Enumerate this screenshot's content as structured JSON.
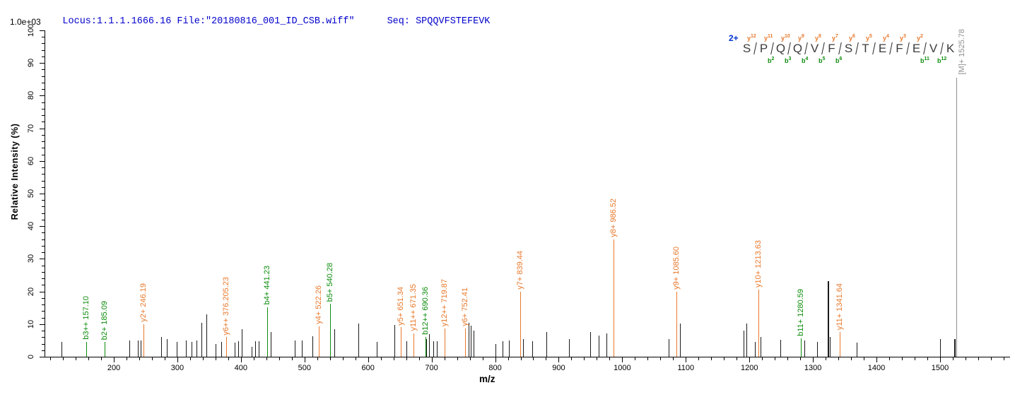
{
  "header": {
    "locus_file": "Locus:1.1.1.1666.16 File:\"20180816_001_ID_CSB.wiff\"",
    "seq": "Seq: SPQQVFSTEFEVK",
    "scale_label": "1.0e+03"
  },
  "colors": {
    "background": "#ffffff",
    "axis": "#000000",
    "peak_default": "#1a1a1a",
    "y_ion": "#e8792c",
    "b_ion": "#0d8c0d",
    "precursor": "#8f8f8f",
    "header_text": "#0000cc",
    "charge_label": "#0033cc",
    "sequence_letters": "#3c3c3c"
  },
  "sequence_panel": {
    "charge_label": "2+",
    "peptide": "SPQQVFSTEFEVK",
    "residues": [
      "S",
      "P",
      "Q",
      "Q",
      "V",
      "F",
      "S",
      "T",
      "E",
      "F",
      "E",
      "V",
      "K"
    ],
    "gaps": [
      {
        "y": "y12",
        "b": ""
      },
      {
        "y": "y11",
        "b": "b2"
      },
      {
        "y": "y10",
        "b": "b3"
      },
      {
        "y": "y9",
        "b": "b4"
      },
      {
        "y": "y8",
        "b": "b5"
      },
      {
        "y": "y7",
        "b": "b6"
      },
      {
        "y": "y6",
        "b": ""
      },
      {
        "y": "y5",
        "b": ""
      },
      {
        "y": "y4",
        "b": ""
      },
      {
        "y": "y3",
        "b": ""
      },
      {
        "y": "y2",
        "b": "b11"
      },
      {
        "y": "",
        "b": "b12"
      }
    ]
  },
  "chart_data": {
    "type": "bar",
    "title": "MS/MS fragmentation spectrum",
    "xlabel": "m/z",
    "ylabel": "Relative  Intensity (%)",
    "intensity_scale_note": "1.0e+03",
    "x_range": [
      91,
      1610
    ],
    "y_range": [
      0,
      100
    ],
    "x_major_from": 200,
    "x_major_to": 1500,
    "x_major_step": 100,
    "x_minor_step": 20,
    "y_major_step": 10,
    "y_minor_step": 2,
    "grid": false,
    "labeled_peaks": [
      {
        "ion": "b3++",
        "series": "b",
        "label": "b3++ 157.10",
        "mz": 157.1,
        "intensity_pct": 4.5
      },
      {
        "ion": "b2+",
        "series": "b",
        "label": "b2+ 185.09",
        "mz": 185.09,
        "intensity_pct": 4.5
      },
      {
        "ion": "y2+",
        "series": "y",
        "label": "y2+ 246.19",
        "mz": 246.19,
        "intensity_pct": 10
      },
      {
        "ion": "y6++",
        "series": "y",
        "label": "y6++ 376.205.23",
        "mz": 376.2,
        "intensity_pct": 6
      },
      {
        "ion": "b4+",
        "series": "b",
        "label": "b4+ 441.23",
        "mz": 441.23,
        "intensity_pct": 15.2
      },
      {
        "ion": "y4+",
        "series": "y",
        "label": "y4+ 522.26",
        "mz": 522.26,
        "intensity_pct": 9.3
      },
      {
        "ion": "b5+",
        "series": "b",
        "label": "b5+ 540.28",
        "mz": 540.28,
        "intensity_pct": 16.2
      },
      {
        "ion": "y5+",
        "series": "y",
        "label": "y5+ 651.34",
        "mz": 651.34,
        "intensity_pct": 9
      },
      {
        "ion": "y11++",
        "series": "y",
        "label": "y11++ 671.35",
        "mz": 671.35,
        "intensity_pct": 7.2
      },
      {
        "ion": "b12++",
        "series": "b",
        "label": "b12++ 690.36",
        "mz": 690.36,
        "intensity_pct": 6
      },
      {
        "ion": "y12++",
        "series": "y",
        "label": "y12++ 719.87",
        "mz": 719.87,
        "intensity_pct": 8.7
      },
      {
        "ion": "y6+",
        "series": "y",
        "label": "y6+ 752.41",
        "mz": 752.41,
        "intensity_pct": 8.7
      },
      {
        "ion": "y7+",
        "series": "y",
        "label": "y7+ 839.44",
        "mz": 839.44,
        "intensity_pct": 20
      },
      {
        "ion": "y8+",
        "series": "y",
        "label": "y8+ 986.52",
        "mz": 986.52,
        "intensity_pct": 36
      },
      {
        "ion": "y9+",
        "series": "y",
        "label": "y9+ 1085.60",
        "mz": 1085.6,
        "intensity_pct": 20
      },
      {
        "ion": "y10+",
        "series": "y",
        "label": "y10+ 1213.63",
        "mz": 1213.63,
        "intensity_pct": 20.5
      },
      {
        "ion": "b11+",
        "series": "b",
        "label": "b11+ 1280.59",
        "mz": 1280.59,
        "intensity_pct": 5.6
      },
      {
        "ion": "y11+",
        "series": "y",
        "label": "y11+ 1341.64",
        "mz": 1341.64,
        "intensity_pct": 7.6
      }
    ],
    "precursor": {
      "ion": "[M]+",
      "label": "[M]+ 1525.78",
      "mz": 1525.78,
      "intensity_pct": 85.5
    },
    "unlabeled_peaks": [
      [
        118,
        4.5
      ],
      [
        224,
        5
      ],
      [
        238,
        5
      ],
      [
        242,
        5
      ],
      [
        274,
        6
      ],
      [
        283,
        5.5
      ],
      [
        299,
        4.5
      ],
      [
        313,
        5
      ],
      [
        322,
        4.5
      ],
      [
        330,
        5
      ],
      [
        338,
        10.4
      ],
      [
        346,
        13
      ],
      [
        360,
        4
      ],
      [
        369,
        4.5
      ],
      [
        390,
        4.3
      ],
      [
        396,
        4.7
      ],
      [
        401,
        8.5
      ],
      [
        417,
        3
      ],
      [
        422,
        4.7
      ],
      [
        428,
        4.7
      ],
      [
        447,
        7.5
      ],
      [
        485,
        5
      ],
      [
        496,
        5
      ],
      [
        512,
        6.3
      ],
      [
        547,
        8.5
      ],
      [
        585,
        10.2
      ],
      [
        614,
        4.5
      ],
      [
        641,
        9.7
      ],
      [
        660,
        4.7
      ],
      [
        692,
        5.5
      ],
      [
        696,
        7
      ],
      [
        703,
        4.7
      ],
      [
        708,
        4.7
      ],
      [
        758,
        10.5
      ],
      [
        762,
        9.5
      ],
      [
        766,
        8
      ],
      [
        800,
        4
      ],
      [
        812,
        4.7
      ],
      [
        822,
        4.9
      ],
      [
        844,
        5.5
      ],
      [
        858,
        4.7
      ],
      [
        880,
        7.6
      ],
      [
        916,
        5.4
      ],
      [
        950,
        7.6
      ],
      [
        963,
        6.5
      ],
      [
        975,
        7.2
      ],
      [
        1073,
        5.4
      ],
      [
        1091,
        10.1
      ],
      [
        1191,
        8
      ],
      [
        1195,
        10.2
      ],
      [
        1209,
        4.5
      ],
      [
        1214,
        10.8
      ],
      [
        1218,
        6.1
      ],
      [
        1249,
        5.2
      ],
      [
        1286,
        5
      ],
      [
        1307,
        4.5
      ],
      [
        1323,
        23.2,
        2
      ],
      [
        1326,
        6
      ],
      [
        1369,
        4.3
      ],
      [
        1500,
        5.4
      ],
      [
        1522,
        5.5,
        2
      ]
    ]
  }
}
